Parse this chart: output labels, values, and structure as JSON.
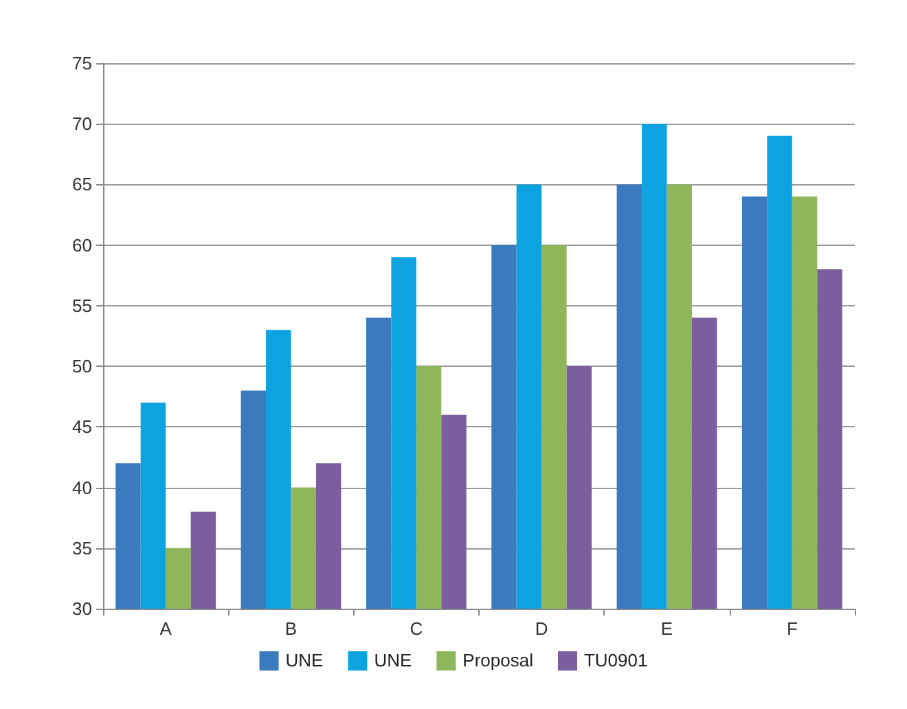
{
  "chart_data": {
    "type": "bar",
    "categories": [
      "A",
      "B",
      "C",
      "D",
      "E",
      "F"
    ],
    "series": [
      {
        "name": "UNE",
        "color": "#3a7abd",
        "values": [
          42,
          48,
          54,
          60,
          65,
          64
        ]
      },
      {
        "name": "UNE",
        "color": "#0ca3e0",
        "values": [
          47,
          53,
          59,
          65,
          70,
          69
        ]
      },
      {
        "name": "Proposal",
        "color": "#8fb65b",
        "values": [
          35,
          40,
          50,
          60,
          65,
          64
        ]
      },
      {
        "name": "TU0901",
        "color": "#7a5e9e",
        "values": [
          38,
          42,
          46,
          50,
          54,
          58
        ]
      }
    ],
    "ylim": [
      30,
      75
    ],
    "yticks": [
      30,
      35,
      40,
      45,
      50,
      55,
      60,
      65,
      70,
      75
    ],
    "grid": "y",
    "legend": "bottom"
  }
}
